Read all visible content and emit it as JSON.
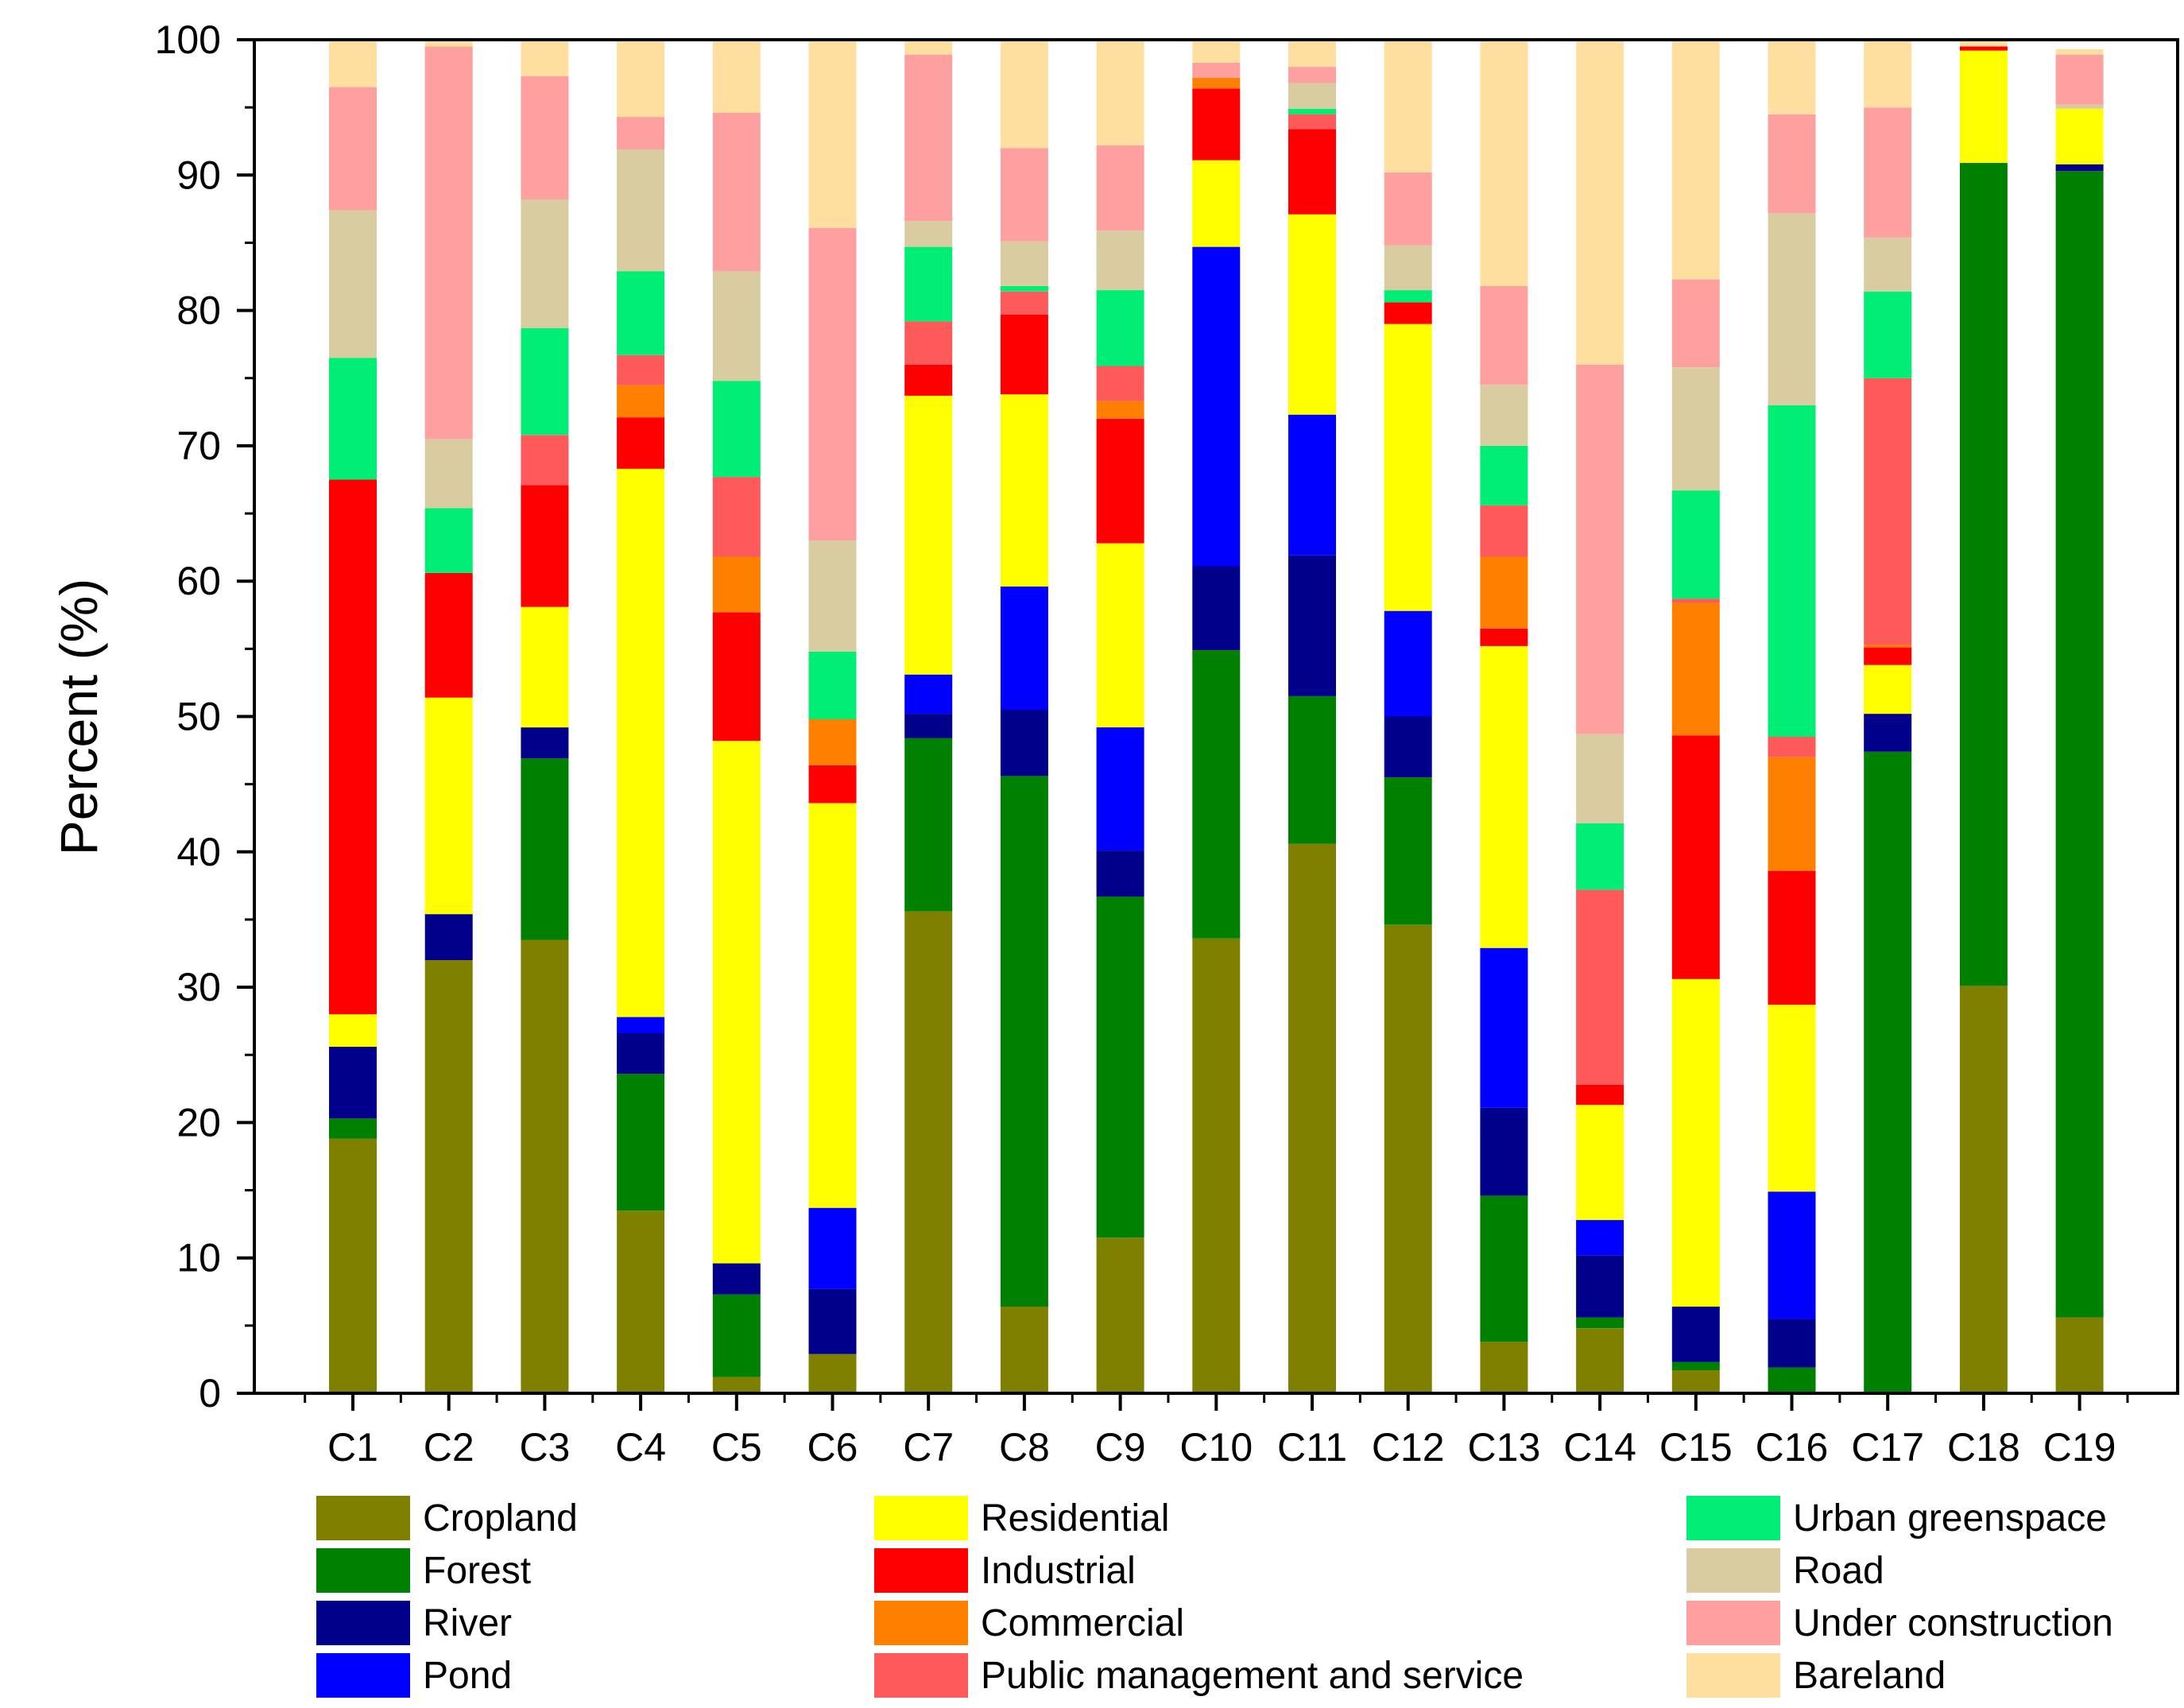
{
  "chart_data": {
    "type": "bar",
    "stacked": true,
    "title": "",
    "xlabel": "",
    "ylabel": "Percent (%)",
    "ylim": [
      0,
      100
    ],
    "yticks": [
      0,
      10,
      20,
      30,
      40,
      50,
      60,
      70,
      80,
      90,
      100
    ],
    "categories": [
      "C1",
      "C2",
      "C3",
      "C4",
      "C5",
      "C6",
      "C7",
      "C8",
      "C9",
      "C10",
      "C11",
      "C12",
      "C13",
      "C14",
      "C15",
      "C16",
      "C17",
      "C18",
      "C19"
    ],
    "series": [
      {
        "name": "Cropland",
        "color": "#808000",
        "values": [
          18.8,
          32.0,
          33.5,
          13.5,
          1.2,
          2.9,
          35.6,
          6.4,
          11.5,
          33.6,
          40.6,
          34.6,
          3.8,
          4.8,
          1.7,
          0.0,
          0.0,
          30.1,
          5.6
        ]
      },
      {
        "name": "Forest",
        "color": "#008000",
        "values": [
          1.5,
          0.0,
          13.4,
          10.1,
          6.1,
          0.0,
          12.8,
          39.2,
          25.2,
          21.3,
          10.9,
          10.9,
          10.8,
          0.8,
          0.6,
          1.9,
          47.4,
          60.8,
          84.7
        ]
      },
      {
        "name": "River",
        "color": "#00008B",
        "values": [
          5.3,
          3.4,
          2.3,
          3.0,
          2.3,
          4.8,
          1.8,
          4.9,
          3.4,
          6.2,
          10.4,
          4.5,
          6.5,
          4.6,
          4.1,
          3.6,
          2.8,
          0.0,
          0.5
        ]
      },
      {
        "name": "Pond",
        "color": "#0000FF",
        "values": [
          0.0,
          0.0,
          0.0,
          1.2,
          0.0,
          6.0,
          2.9,
          9.1,
          9.1,
          23.6,
          10.4,
          7.8,
          11.8,
          2.6,
          0.0,
          9.4,
          0.0,
          0.0,
          0.0
        ]
      },
      {
        "name": "Residential",
        "color": "#FFFF00",
        "values": [
          2.4,
          16.0,
          8.9,
          40.5,
          38.6,
          29.9,
          20.6,
          14.2,
          13.6,
          6.4,
          14.8,
          21.2,
          22.3,
          8.5,
          24.2,
          13.8,
          3.6,
          8.3,
          4.1
        ]
      },
      {
        "name": "Industrial",
        "color": "#FF0000",
        "values": [
          39.5,
          9.2,
          9.0,
          3.8,
          9.5,
          2.8,
          2.3,
          5.9,
          9.2,
          5.3,
          6.3,
          1.6,
          1.3,
          1.5,
          18.0,
          9.9,
          1.3,
          0.3,
          0.0
        ]
      },
      {
        "name": "Commercial",
        "color": "#FF8000",
        "values": [
          0.0,
          0.0,
          0.0,
          2.4,
          4.1,
          3.4,
          0.0,
          0.0,
          1.3,
          0.8,
          0.0,
          0.0,
          5.3,
          0.0,
          9.8,
          8.4,
          0.2,
          0.0,
          0.0
        ]
      },
      {
        "name": "Public management and service",
        "color": "#FF5A5A",
        "values": [
          0.0,
          0.0,
          3.7,
          2.2,
          5.9,
          0.0,
          3.2,
          1.7,
          2.6,
          0.0,
          1.1,
          0.0,
          3.8,
          14.4,
          0.3,
          1.5,
          19.7,
          0.0,
          0.0
        ]
      },
      {
        "name": "Urban greenspace",
        "color": "#00EE76",
        "values": [
          9.0,
          4.8,
          7.9,
          6.2,
          7.1,
          5.0,
          5.5,
          0.4,
          5.6,
          0.0,
          0.4,
          0.9,
          4.4,
          4.9,
          8.0,
          24.5,
          6.4,
          0.0,
          0.0
        ]
      },
      {
        "name": "Road",
        "color": "#D8CCA0",
        "values": [
          10.9,
          5.1,
          9.5,
          9.0,
          8.1,
          8.2,
          1.9,
          3.3,
          4.4,
          0.0,
          1.9,
          3.3,
          4.5,
          6.6,
          9.1,
          14.2,
          4.0,
          0.0,
          0.3
        ]
      },
      {
        "name": "Under construction",
        "color": "#FFA0A0",
        "values": [
          9.1,
          29.0,
          9.1,
          2.4,
          11.7,
          23.1,
          12.3,
          6.9,
          6.3,
          1.1,
          1.2,
          5.4,
          7.3,
          27.3,
          6.5,
          7.3,
          9.6,
          0.0,
          3.7
        ]
      },
      {
        "name": "Bareland",
        "color": "#FFDFA0",
        "values": [
          3.5,
          0.5,
          2.6,
          5.7,
          5.4,
          14.0,
          1.0,
          7.9,
          7.8,
          1.7,
          1.9,
          9.8,
          18.3,
          24.0,
          17.7,
          5.5,
          5.0,
          0.5,
          0.4
        ]
      }
    ],
    "legend": {
      "position": "bottom",
      "columns": [
        [
          "Cropland",
          "Forest",
          "River",
          "Pond"
        ],
        [
          "Residential",
          "Industrial",
          "Commercial",
          "Public management and service"
        ],
        [
          "Urban greenspace",
          "Road",
          "Under construction",
          "Bareland"
        ]
      ]
    },
    "grid": false
  }
}
